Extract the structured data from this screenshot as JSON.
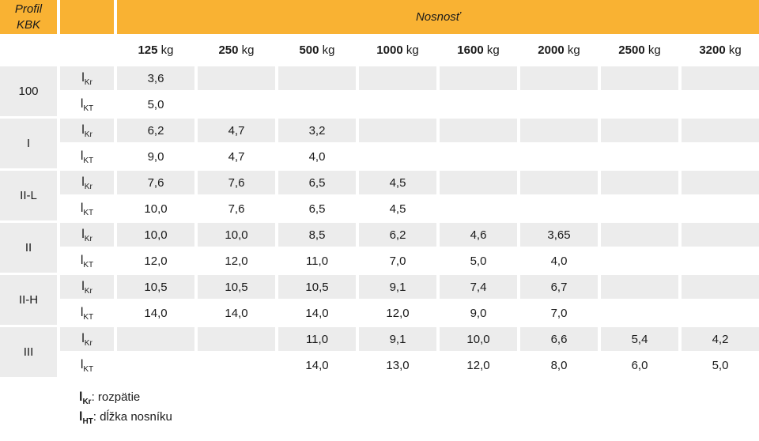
{
  "colors": {
    "accent_yellow": "#F9B233",
    "row_gray": "#ECECEC",
    "text": "#1A1A1A"
  },
  "header": {
    "profile_title_line1": "Profil",
    "profile_title_line2": "KBK",
    "capacity_title": "Nosnosť",
    "capacity_unit": "kg",
    "capacities": [
      "125",
      "250",
      "500",
      "1000",
      "1600",
      "2000",
      "2500",
      "3200"
    ]
  },
  "row_symbols": {
    "kr": {
      "base": "l",
      "sub": "Kr"
    },
    "kt": {
      "base": "l",
      "sub": "KT"
    }
  },
  "groups": [
    {
      "profile": "100",
      "kr": [
        "3,6",
        "",
        "",
        "",
        "",
        "",
        "",
        ""
      ],
      "kt": [
        "5,0",
        "",
        "",
        "",
        "",
        "",
        "",
        ""
      ]
    },
    {
      "profile": "I",
      "kr": [
        "6,2",
        "4,7",
        "3,2",
        "",
        "",
        "",
        "",
        ""
      ],
      "kt": [
        "9,0",
        "4,7",
        "4,0",
        "",
        "",
        "",
        "",
        ""
      ]
    },
    {
      "profile": "II-L",
      "kr": [
        "7,6",
        "7,6",
        "6,5",
        "4,5",
        "",
        "",
        "",
        ""
      ],
      "kt": [
        "10,0",
        "7,6",
        "6,5",
        "4,5",
        "",
        "",
        "",
        ""
      ]
    },
    {
      "profile": "II",
      "kr": [
        "10,0",
        "10,0",
        "8,5",
        "6,2",
        "4,6",
        "3,65",
        "",
        ""
      ],
      "kt": [
        "12,0",
        "12,0",
        "11,0",
        "7,0",
        "5,0",
        "4,0",
        "",
        ""
      ]
    },
    {
      "profile": "II-H",
      "kr": [
        "10,5",
        "10,5",
        "10,5",
        "9,1",
        "7,4",
        "6,7",
        "",
        ""
      ],
      "kt": [
        "14,0",
        "14,0",
        "14,0",
        "12,0",
        "9,0",
        "7,0",
        "",
        ""
      ]
    },
    {
      "profile": "III",
      "kr": [
        "",
        "",
        "11,0",
        "9,1",
        "10,0",
        "6,6",
        "5,4",
        "4,2"
      ],
      "kt": [
        "",
        "",
        "14,0",
        "13,0",
        "12,0",
        "8,0",
        "6,0",
        "5,0"
      ]
    }
  ],
  "legend": [
    {
      "symbol_base": "l",
      "symbol_sub": "Kr",
      "text": ": rozpätie"
    },
    {
      "symbol_base": "l",
      "symbol_sub": "HT",
      "text": ": dĺžka nosníku"
    }
  ],
  "chart_data": {
    "type": "table",
    "title": "Nosnosť",
    "row_header": "Profil KBK",
    "columns": [
      "125 kg",
      "250 kg",
      "500 kg",
      "1000 kg",
      "1600 kg",
      "2000 kg",
      "2500 kg",
      "3200 kg"
    ],
    "rows": [
      {
        "profile": "100",
        "measure": "lKr",
        "values": [
          "3,6",
          "",
          "",
          "",
          "",
          "",
          "",
          ""
        ]
      },
      {
        "profile": "100",
        "measure": "lKT",
        "values": [
          "5,0",
          "",
          "",
          "",
          "",
          "",
          "",
          ""
        ]
      },
      {
        "profile": "I",
        "measure": "lKr",
        "values": [
          "6,2",
          "4,7",
          "3,2",
          "",
          "",
          "",
          "",
          ""
        ]
      },
      {
        "profile": "I",
        "measure": "lKT",
        "values": [
          "9,0",
          "4,7",
          "4,0",
          "",
          "",
          "",
          "",
          ""
        ]
      },
      {
        "profile": "II-L",
        "measure": "lKr",
        "values": [
          "7,6",
          "7,6",
          "6,5",
          "4,5",
          "",
          "",
          "",
          ""
        ]
      },
      {
        "profile": "II-L",
        "measure": "lKT",
        "values": [
          "10,0",
          "7,6",
          "6,5",
          "4,5",
          "",
          "",
          "",
          ""
        ]
      },
      {
        "profile": "II",
        "measure": "lKr",
        "values": [
          "10,0",
          "10,0",
          "8,5",
          "6,2",
          "4,6",
          "3,65",
          "",
          ""
        ]
      },
      {
        "profile": "II",
        "measure": "lKT",
        "values": [
          "12,0",
          "12,0",
          "11,0",
          "7,0",
          "5,0",
          "4,0",
          "",
          ""
        ]
      },
      {
        "profile": "II-H",
        "measure": "lKr",
        "values": [
          "10,5",
          "10,5",
          "10,5",
          "9,1",
          "7,4",
          "6,7",
          "",
          ""
        ]
      },
      {
        "profile": "II-H",
        "measure": "lKT",
        "values": [
          "14,0",
          "14,0",
          "14,0",
          "12,0",
          "9,0",
          "7,0",
          "",
          ""
        ]
      },
      {
        "profile": "III",
        "measure": "lKr",
        "values": [
          "",
          "",
          "11,0",
          "9,1",
          "10,0",
          "6,6",
          "5,4",
          "4,2"
        ]
      },
      {
        "profile": "III",
        "measure": "lKT",
        "values": [
          "",
          "",
          "14,0",
          "13,0",
          "12,0",
          "8,0",
          "6,0",
          "5,0"
        ]
      }
    ],
    "annotations": [
      "lKr: rozpätie",
      "lHT: dĺžka nosníku"
    ],
    "layout": {
      "header_style": "yellow band",
      "zebra": "gray lKr rows, white lKT rows"
    }
  }
}
